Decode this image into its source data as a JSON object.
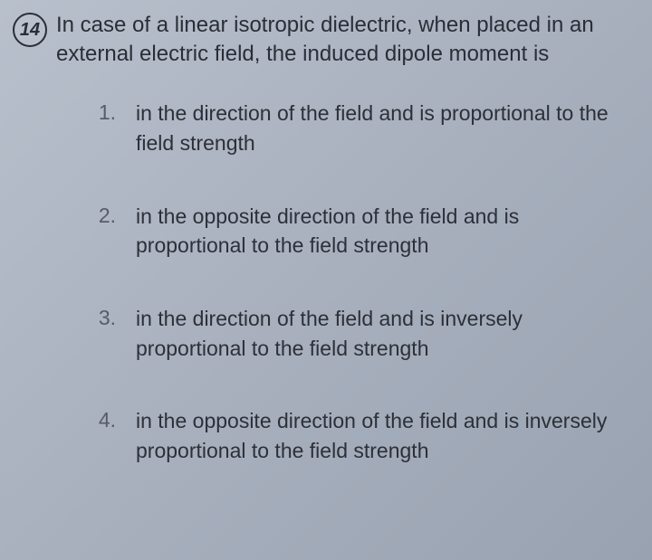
{
  "question": {
    "number": "14",
    "stem": "In case of a linear isotropic dielectric, when placed in an external electric field, the induced dipole moment is"
  },
  "options": [
    {
      "num": "1.",
      "text": "in the direction of the field and is proportional to the field strength"
    },
    {
      "num": "2.",
      "text": "in the opposite direction of the field and is proportional to the field strength"
    },
    {
      "num": "3.",
      "text": "in the direction of the field and is inversely proportional to the field strength"
    },
    {
      "num": "4.",
      "text": "in the opposite direction of the field and is inversely proportional to the field strength"
    }
  ]
}
